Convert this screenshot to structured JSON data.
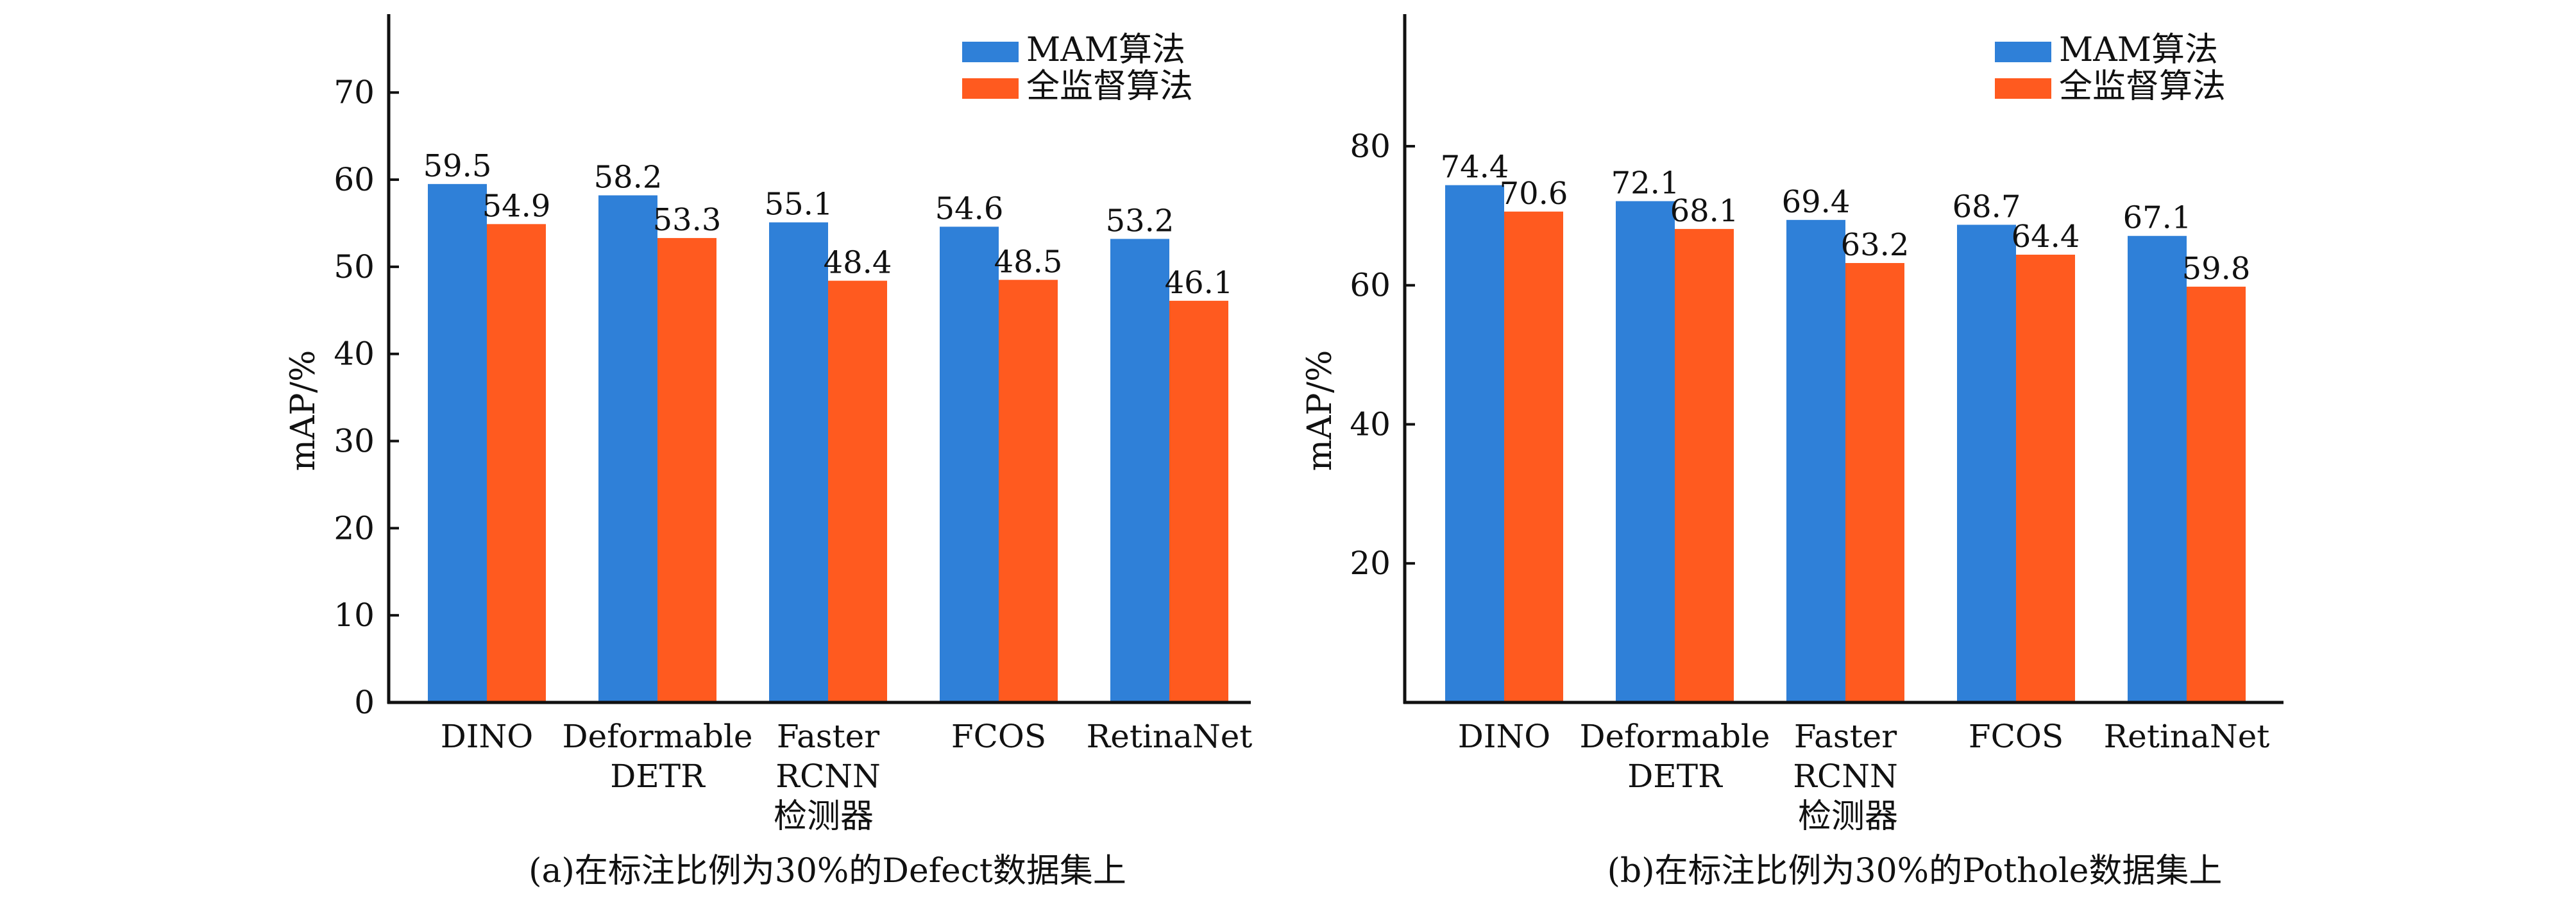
{
  "colors": {
    "mam": "#2f80d8",
    "full": "#ff5a1f",
    "axis": "#111111",
    "text": "#111111"
  },
  "chart_data": [
    {
      "type": "bar",
      "panel": "a",
      "title": "(a)在标注比例为30%的Defect数据集上",
      "xlabel": "检测器",
      "ylabel": "mAP/%",
      "categories": [
        [
          "DINO"
        ],
        [
          "Deformable",
          "DETR"
        ],
        [
          "Faster",
          "RCNN"
        ],
        [
          "FCOS"
        ],
        [
          "RetinaNet"
        ]
      ],
      "ylim": [
        0,
        79
      ],
      "yticks": [
        0,
        10,
        20,
        30,
        40,
        50,
        60,
        70
      ],
      "grid": false,
      "legend_position": "top-right",
      "series": [
        {
          "name": "MAM算法",
          "color_key": "mam",
          "values": [
            59.5,
            58.2,
            55.1,
            54.6,
            53.2
          ]
        },
        {
          "name": "全监督算法",
          "color_key": "full",
          "values": [
            54.9,
            53.3,
            48.4,
            48.5,
            46.1
          ]
        }
      ]
    },
    {
      "type": "bar",
      "panel": "b",
      "title": "(b)在标注比例为30%的Pothole数据集上",
      "xlabel": "检测器",
      "ylabel": "mAP/%",
      "categories": [
        [
          "DINO"
        ],
        [
          "Deformable",
          "DETR"
        ],
        [
          "Faster",
          "RCNN"
        ],
        [
          "FCOS"
        ],
        [
          "RetinaNet"
        ]
      ],
      "ylim": [
        0,
        99
      ],
      "yticks": [
        20,
        40,
        60,
        80
      ],
      "grid": false,
      "legend_position": "top-right",
      "series": [
        {
          "name": "MAM算法",
          "color_key": "mam",
          "values": [
            74.4,
            72.1,
            69.4,
            68.7,
            67.1
          ]
        },
        {
          "name": "全监督算法",
          "color_key": "full",
          "values": [
            70.6,
            68.1,
            63.2,
            64.4,
            59.8
          ]
        }
      ]
    }
  ]
}
